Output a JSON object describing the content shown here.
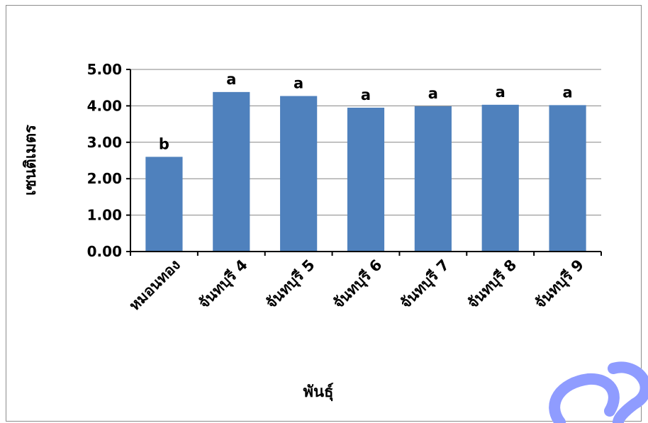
{
  "chart_data": {
    "type": "bar",
    "title": "",
    "xlabel": "พันธุ์",
    "ylabel": "เซนติเมตร",
    "categories": [
      "หมอนทอง",
      "จันทบุรี 4",
      "จันทบุรี 5",
      "จันทบุรี 6",
      "จันทบุรี 7",
      "จันทบุรี 8",
      "จันทบุรี 9"
    ],
    "values": [
      2.6,
      4.38,
      4.27,
      3.95,
      3.99,
      4.03,
      4.02
    ],
    "data_labels": [
      "b",
      "a",
      "a",
      "a",
      "a",
      "a",
      "a"
    ],
    "ylim": [
      0,
      5
    ],
    "yticks": [
      "0.00",
      "1.00",
      "2.00",
      "3.00",
      "4.00",
      "5.00"
    ],
    "grid": true,
    "legend": "none",
    "bar_color": "#4f81bd"
  }
}
